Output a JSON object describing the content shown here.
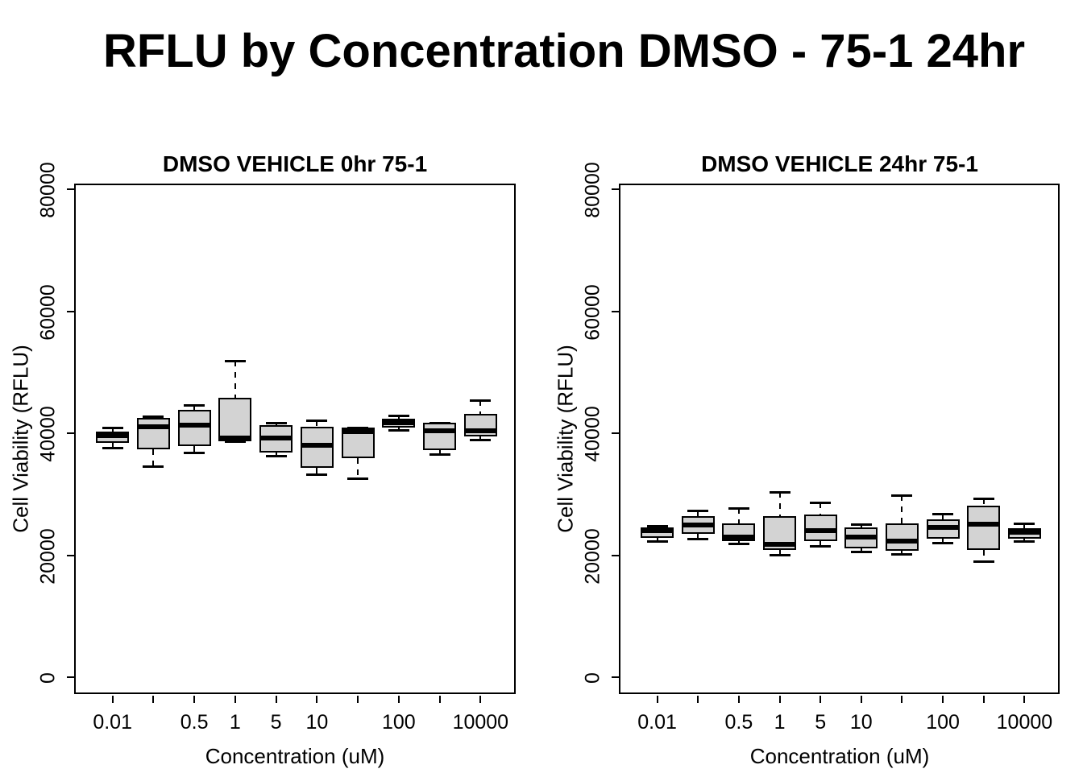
{
  "title": "RFLU by Concentration DMSO - 75-1 24hr",
  "y_axis_label": "Cell Viability (RFLU)",
  "x_axis_label": "Concentration (uM)",
  "colors": {
    "box_fill": "#d3d3d3",
    "line": "#000000"
  },
  "chart_data": {
    "type": "boxplot",
    "title": "RFLU by Concentration DMSO - 75-1 24hr",
    "xlabel": "Concentration (uM)",
    "ylabel": "Cell Viability (RFLU)",
    "x_tick_labels": [
      "0.01",
      "",
      "0.5",
      "1",
      "5",
      "10",
      "",
      "100",
      "",
      "10000"
    ],
    "y_ticks": [
      0,
      20000,
      40000,
      60000,
      80000
    ],
    "ylim": [
      -2900,
      80800
    ],
    "grid": false,
    "legend_position": "none",
    "panels": [
      {
        "title": "DMSO VEHICLE 0hr 75-1",
        "boxes": [
          {
            "lo": 37800,
            "q1": 38500,
            "med": 39800,
            "q3": 40400,
            "hi": 41100
          },
          {
            "lo": 34700,
            "q1": 37500,
            "med": 41200,
            "q3": 42600,
            "hi": 42900
          },
          {
            "lo": 37000,
            "q1": 38000,
            "med": 41400,
            "q3": 44000,
            "hi": 44700
          },
          {
            "lo": 38800,
            "q1": 38800,
            "med": 39400,
            "q3": 45900,
            "hi": 52000
          },
          {
            "lo": 36500,
            "q1": 37000,
            "med": 39400,
            "q3": 41400,
            "hi": 41800
          },
          {
            "lo": 33400,
            "q1": 34500,
            "med": 38200,
            "q3": 41200,
            "hi": 42200
          },
          {
            "lo": 32800,
            "q1": 36000,
            "med": 40400,
            "q3": 41000,
            "hi": 41000
          },
          {
            "lo": 40700,
            "q1": 41100,
            "med": 41800,
            "q3": 42500,
            "hi": 43000
          },
          {
            "lo": 36700,
            "q1": 37400,
            "med": 40600,
            "q3": 41900,
            "hi": 41900
          },
          {
            "lo": 39100,
            "q1": 39600,
            "med": 40500,
            "q3": 43300,
            "hi": 45600
          }
        ]
      },
      {
        "title": "DMSO VEHICLE 24hr 75-1",
        "boxes": [
          {
            "lo": 22400,
            "q1": 23000,
            "med": 24100,
            "q3": 24700,
            "hi": 25000
          },
          {
            "lo": 22900,
            "q1": 23700,
            "med": 25100,
            "q3": 26500,
            "hi": 27500
          },
          {
            "lo": 22000,
            "q1": 22500,
            "med": 23100,
            "q3": 25400,
            "hi": 27800
          },
          {
            "lo": 20200,
            "q1": 21000,
            "med": 21900,
            "q3": 26500,
            "hi": 30500
          },
          {
            "lo": 21700,
            "q1": 22400,
            "med": 24200,
            "q3": 26800,
            "hi": 28800
          },
          {
            "lo": 20700,
            "q1": 21200,
            "med": 23100,
            "q3": 24700,
            "hi": 25200
          },
          {
            "lo": 20400,
            "q1": 20900,
            "med": 22400,
            "q3": 25300,
            "hi": 30000
          },
          {
            "lo": 22200,
            "q1": 22900,
            "med": 24700,
            "q3": 26000,
            "hi": 27000
          },
          {
            "lo": 19100,
            "q1": 21000,
            "med": 25200,
            "q3": 28300,
            "hi": 29500
          },
          {
            "lo": 22400,
            "q1": 22900,
            "med": 23900,
            "q3": 24600,
            "hi": 25300
          }
        ]
      }
    ]
  }
}
